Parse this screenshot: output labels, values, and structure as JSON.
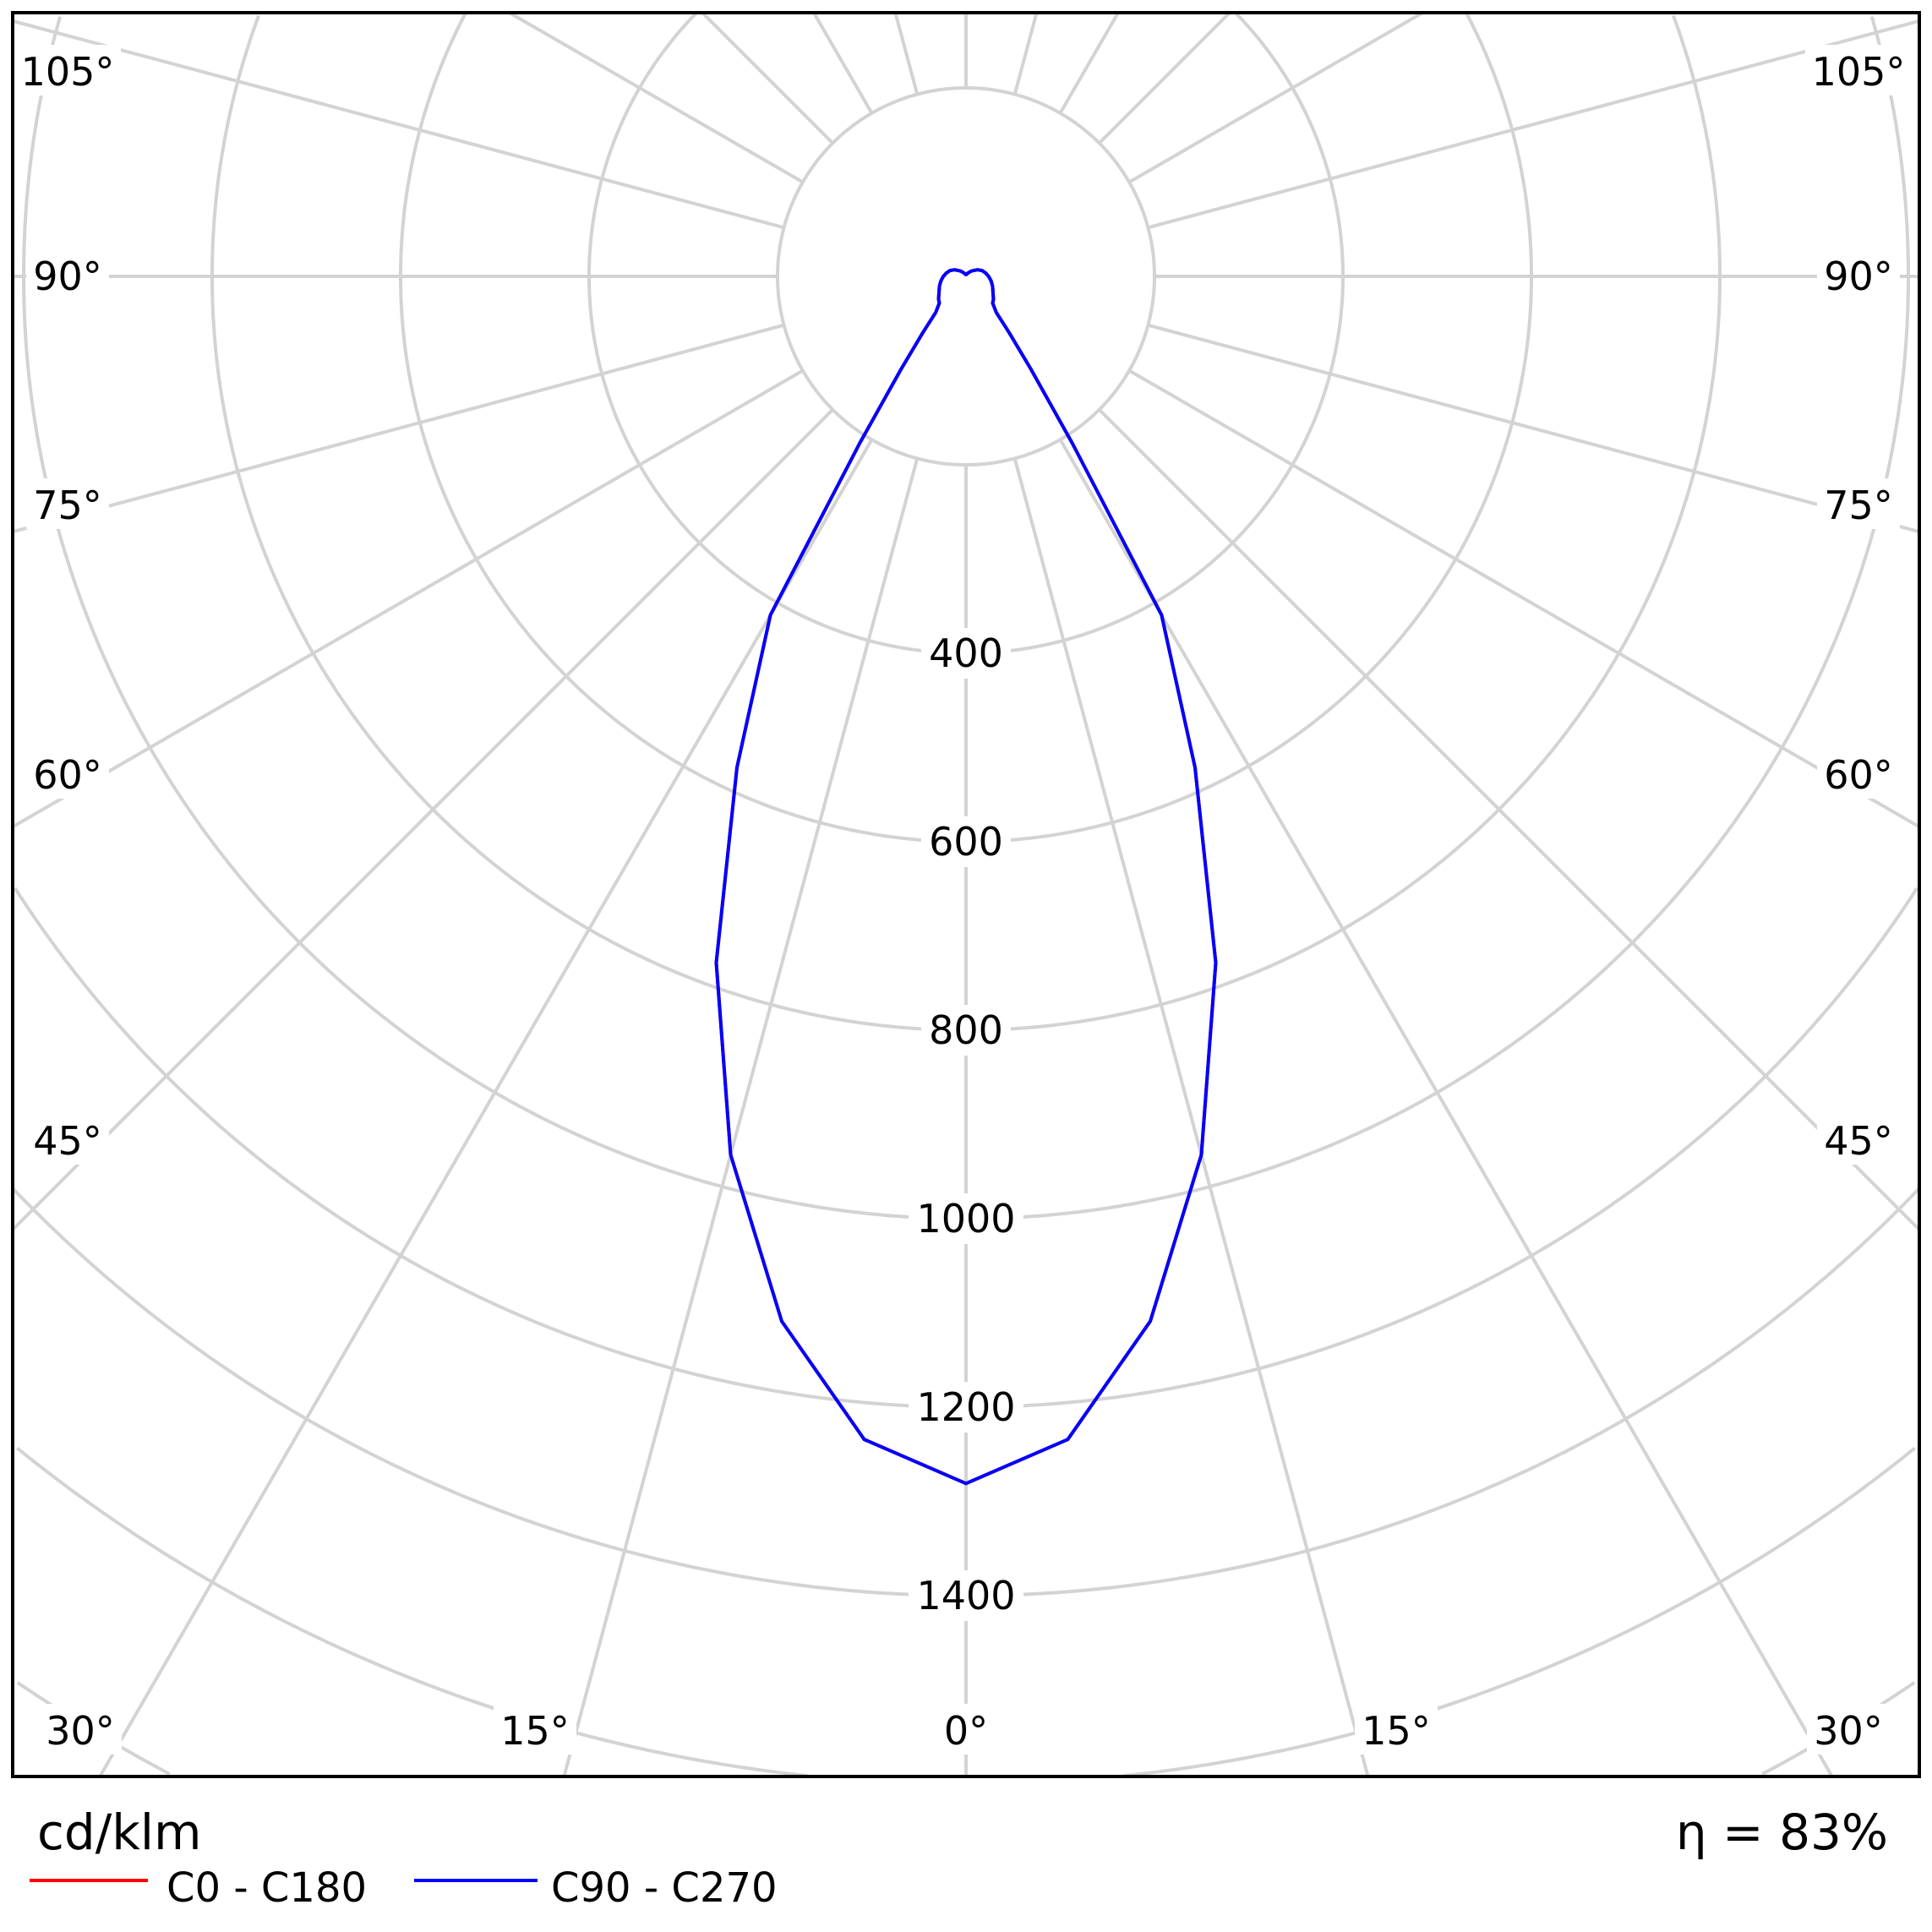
{
  "chart_data": {
    "type": "polar",
    "unit_label": "cd/klm",
    "efficiency_label": "η = 83%",
    "radial_ticks": [
      200,
      400,
      600,
      800,
      1000,
      1200,
      1400,
      1600,
      1800
    ],
    "radial_tick_labels": [
      "400",
      "600",
      "800",
      "1000",
      "1200",
      "1400"
    ],
    "angle_labels": {
      "bottom": [
        "30°",
        "15°",
        "0°",
        "15°",
        "30°"
      ],
      "sides": [
        "105°",
        "90°",
        "75°",
        "60°",
        "45°"
      ]
    },
    "angle_step_deg": 15,
    "grid": true,
    "legend_placement": "bottom-left",
    "angles_deg": [
      0,
      5,
      10,
      15,
      20,
      25,
      30,
      32.5,
      35,
      37.5,
      40,
      45,
      50,
      60,
      70,
      80,
      90,
      100,
      110,
      120,
      135,
      150,
      165,
      180
    ],
    "series": [
      {
        "name": "C0 - C180",
        "color": "#ff0000",
        "values": [
          1281,
          1239,
          1126,
          965,
          775,
          575,
          415,
          210,
          120,
          75,
          50,
          40,
          38,
          33,
          30,
          27,
          24,
          21,
          18,
          14,
          8,
          4,
          2,
          2
        ]
      },
      {
        "name": "C90 - C270",
        "color": "#0000ff",
        "values": [
          1281,
          1239,
          1126,
          965,
          775,
          575,
          415,
          210,
          120,
          75,
          50,
          40,
          38,
          33,
          30,
          27,
          24,
          21,
          18,
          14,
          8,
          4,
          2,
          2
        ]
      }
    ]
  }
}
